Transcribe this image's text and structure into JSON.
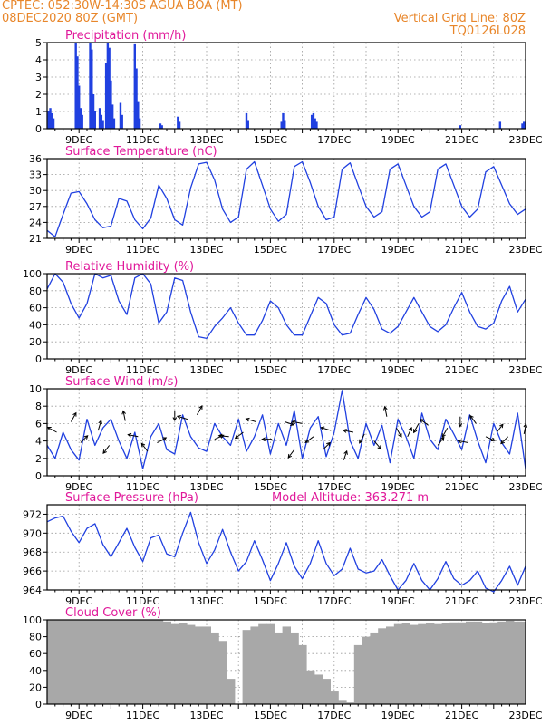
{
  "header": {
    "line1": "CPTEC:   052:30W-14:30S  AGUA BOA (MT)",
    "line2": "08DEC2020 80Z (GMT)",
    "grid_note": "Vertical Grid Line: 80Z",
    "model_code": "TQ0126L028"
  },
  "colors": {
    "header": "#e8862a",
    "title": "#e0189a",
    "series": "#2040e0",
    "cloud": "#a8a8a8",
    "axis": "#000000"
  },
  "x_ticks": [
    "9DEC",
    "11DEC",
    "13DEC",
    "15DEC",
    "17DEC",
    "19DEC",
    "21DEC",
    "23DEC"
  ],
  "chart_data": [
    {
      "type": "bar",
      "id": "precip",
      "title": "Precipitation (mm/h)",
      "ylim": [
        0,
        5
      ],
      "yticks": [
        0,
        1,
        2,
        3,
        4,
        5
      ],
      "bars": [
        [
          8.05,
          1.0
        ],
        [
          8.1,
          1.2
        ],
        [
          8.15,
          0.9
        ],
        [
          8.2,
          0.6
        ],
        [
          8.9,
          5.0
        ],
        [
          8.95,
          4.2
        ],
        [
          9.0,
          2.5
        ],
        [
          9.05,
          1.2
        ],
        [
          9.1,
          0.8
        ],
        [
          9.35,
          5.0
        ],
        [
          9.4,
          4.6
        ],
        [
          9.45,
          2.0
        ],
        [
          9.5,
          1.0
        ],
        [
          9.65,
          1.2
        ],
        [
          9.7,
          0.8
        ],
        [
          9.75,
          0.5
        ],
        [
          9.85,
          3.8
        ],
        [
          9.9,
          5.0
        ],
        [
          9.95,
          4.7
        ],
        [
          10.0,
          2.8
        ],
        [
          10.05,
          1.4
        ],
        [
          10.1,
          0.6
        ],
        [
          10.3,
          1.5
        ],
        [
          10.35,
          0.8
        ],
        [
          10.75,
          4.9
        ],
        [
          10.8,
          3.5
        ],
        [
          10.85,
          1.6
        ],
        [
          10.9,
          0.6
        ],
        [
          11.55,
          0.3
        ],
        [
          11.6,
          0.2
        ],
        [
          12.1,
          0.7
        ],
        [
          12.15,
          0.4
        ],
        [
          14.25,
          0.9
        ],
        [
          14.3,
          0.5
        ],
        [
          15.35,
          0.4
        ],
        [
          15.4,
          0.9
        ],
        [
          15.45,
          0.5
        ],
        [
          16.3,
          0.8
        ],
        [
          16.35,
          0.9
        ],
        [
          16.4,
          0.6
        ],
        [
          16.45,
          0.4
        ],
        [
          20.95,
          0.2
        ],
        [
          22.2,
          0.4
        ],
        [
          22.9,
          0.3
        ],
        [
          22.95,
          0.4
        ]
      ]
    },
    {
      "type": "line",
      "id": "temp",
      "title": "Surface Temperature (nC)",
      "ylim": [
        21,
        36
      ],
      "yticks": [
        21,
        24,
        27,
        30,
        33,
        36
      ],
      "x": [
        8.0,
        8.25,
        8.5,
        8.75,
        9.0,
        9.25,
        9.5,
        9.75,
        10.0,
        10.25,
        10.5,
        10.75,
        11.0,
        11.25,
        11.5,
        11.75,
        12.0,
        12.25,
        12.5,
        12.75,
        13.0,
        13.25,
        13.5,
        13.75,
        14.0,
        14.25,
        14.5,
        14.75,
        15.0,
        15.25,
        15.5,
        15.75,
        16.0,
        16.25,
        16.5,
        16.75,
        17.0,
        17.25,
        17.5,
        17.75,
        18.0,
        18.25,
        18.5,
        18.75,
        19.0,
        19.25,
        19.5,
        19.75,
        20.0,
        20.25,
        20.5,
        20.75,
        21.0,
        21.25,
        21.5,
        21.75,
        22.0,
        22.25,
        22.5,
        22.75,
        23.0
      ],
      "y": [
        22.5,
        21.3,
        25.5,
        29.5,
        29.8,
        27.5,
        24.5,
        23.0,
        23.3,
        28.5,
        28.0,
        24.5,
        22.8,
        24.8,
        31.0,
        28.5,
        24.5,
        23.5,
        30.5,
        35.0,
        35.3,
        32.0,
        26.5,
        24.0,
        25.0,
        34.0,
        35.4,
        31.0,
        26.5,
        24.2,
        25.5,
        34.5,
        35.4,
        31.5,
        27.0,
        24.5,
        25.0,
        34.0,
        35.2,
        31.0,
        27.0,
        25.0,
        26.0,
        34.0,
        35.0,
        31.0,
        27.0,
        25.0,
        26.0,
        34.0,
        35.0,
        31.0,
        27.0,
        25.0,
        26.5,
        33.5,
        34.5,
        31.0,
        27.5,
        25.5,
        26.5
      ]
    },
    {
      "type": "line",
      "id": "rh",
      "title": "Relative Humidity (%)",
      "ylim": [
        0,
        100
      ],
      "yticks": [
        0,
        20,
        40,
        60,
        80,
        100
      ],
      "x": [
        8.0,
        8.25,
        8.5,
        8.75,
        9.0,
        9.25,
        9.5,
        9.75,
        10.0,
        10.25,
        10.5,
        10.75,
        11.0,
        11.25,
        11.5,
        11.75,
        12.0,
        12.25,
        12.5,
        12.75,
        13.0,
        13.25,
        13.5,
        13.75,
        14.0,
        14.25,
        14.5,
        14.75,
        15.0,
        15.25,
        15.5,
        15.75,
        16.0,
        16.25,
        16.5,
        16.75,
        17.0,
        17.25,
        17.5,
        17.75,
        18.0,
        18.25,
        18.5,
        18.75,
        19.0,
        19.25,
        19.5,
        19.75,
        20.0,
        20.25,
        20.5,
        20.75,
        21.0,
        21.25,
        21.5,
        21.75,
        22.0,
        22.25,
        22.5,
        22.75,
        23.0
      ],
      "y": [
        82,
        100,
        90,
        65,
        48,
        65,
        100,
        95,
        98,
        68,
        52,
        95,
        100,
        88,
        42,
        55,
        95,
        92,
        55,
        26,
        24,
        38,
        48,
        60,
        42,
        28,
        28,
        45,
        68,
        60,
        40,
        28,
        28,
        50,
        72,
        65,
        40,
        28,
        30,
        52,
        72,
        58,
        35,
        30,
        38,
        55,
        72,
        55,
        38,
        32,
        40,
        60,
        78,
        55,
        38,
        35,
        42,
        68,
        85,
        55,
        70
      ]
    },
    {
      "type": "line",
      "id": "wind",
      "title": "Surface Wind (m/s)",
      "ylim": [
        0,
        10
      ],
      "yticks": [
        0,
        2,
        4,
        6,
        8,
        10
      ],
      "x": [
        8.0,
        8.25,
        8.5,
        8.75,
        9.0,
        9.25,
        9.5,
        9.75,
        10.0,
        10.25,
        10.5,
        10.75,
        11.0,
        11.25,
        11.5,
        11.75,
        12.0,
        12.25,
        12.5,
        12.75,
        13.0,
        13.25,
        13.5,
        13.75,
        14.0,
        14.25,
        14.5,
        14.75,
        15.0,
        15.25,
        15.5,
        15.75,
        16.0,
        16.25,
        16.5,
        16.75,
        17.0,
        17.25,
        17.5,
        17.75,
        18.0,
        18.25,
        18.5,
        18.75,
        19.0,
        19.25,
        19.5,
        19.75,
        20.0,
        20.25,
        20.5,
        20.75,
        21.0,
        21.25,
        21.5,
        21.75,
        22.0,
        22.25,
        22.5,
        22.75,
        23.0
      ],
      "y": [
        3.5,
        2.0,
        5.0,
        3.0,
        1.8,
        6.5,
        3.5,
        5.5,
        6.5,
        4.0,
        2.0,
        5.0,
        0.8,
        4.5,
        6.0,
        3.0,
        2.5,
        7.0,
        4.5,
        3.2,
        2.8,
        6.0,
        4.5,
        3.5,
        6.5,
        2.8,
        4.5,
        7.0,
        2.5,
        6.0,
        3.5,
        7.5,
        2.0,
        5.5,
        6.8,
        2.2,
        5.0,
        9.8,
        4.0,
        2.0,
        6.0,
        3.5,
        5.8,
        1.5,
        6.5,
        4.5,
        2.0,
        7.2,
        4.2,
        3.0,
        6.5,
        4.8,
        3.0,
        7.0,
        4.0,
        1.5,
        6.0,
        3.8,
        2.5,
        7.2,
        0.8
      ],
      "arrows": [
        [
          8.3,
          5.0,
          -0.9,
          0.5
        ],
        [
          8.75,
          6.2,
          0.5,
          0.9
        ],
        [
          9.05,
          3.8,
          0.7,
          0.7
        ],
        [
          9.6,
          5.2,
          0.3,
          1.0
        ],
        [
          9.95,
          3.5,
          -0.6,
          -0.8
        ],
        [
          10.45,
          6.3,
          -0.2,
          1.0
        ],
        [
          10.85,
          4.5,
          -1.0,
          0.2
        ],
        [
          11.15,
          2.8,
          -0.6,
          0.8
        ],
        [
          11.45,
          3.8,
          0.9,
          0.5
        ],
        [
          12.0,
          7.5,
          0.0,
          -1.0
        ],
        [
          12.4,
          6.5,
          -1.0,
          0.3
        ],
        [
          12.7,
          7.0,
          0.5,
          0.9
        ],
        [
          13.25,
          4.2,
          0.9,
          0.4
        ],
        [
          13.7,
          4.5,
          -1.0,
          0.1
        ],
        [
          14.15,
          5.0,
          -0.8,
          -0.6
        ],
        [
          14.55,
          6.2,
          -1.0,
          0.3
        ],
        [
          15.05,
          4.2,
          -1.0,
          0.0
        ],
        [
          15.45,
          6.2,
          0.9,
          -0.3
        ],
        [
          15.75,
          3.0,
          -0.6,
          -0.8
        ],
        [
          16.0,
          6.0,
          -1.0,
          0.2
        ],
        [
          16.35,
          4.5,
          -0.8,
          -0.6
        ],
        [
          16.65,
          3.0,
          0.7,
          0.7
        ],
        [
          16.9,
          5.2,
          -1.0,
          0.3
        ],
        [
          17.3,
          1.8,
          0.3,
          0.9
        ],
        [
          17.6,
          5.0,
          -1.0,
          0.2
        ],
        [
          17.95,
          4.8,
          -0.5,
          -0.9
        ],
        [
          18.25,
          4.0,
          0.7,
          -0.8
        ],
        [
          18.65,
          6.8,
          -0.2,
          1.0
        ],
        [
          18.95,
          5.5,
          0.5,
          -0.9
        ],
        [
          19.3,
          4.5,
          0.4,
          0.9
        ],
        [
          19.65,
          6.0,
          -0.5,
          -0.9
        ],
        [
          19.95,
          5.8,
          -0.8,
          0.6
        ],
        [
          20.25,
          3.5,
          0.6,
          0.8
        ],
        [
          20.55,
          5.5,
          -0.5,
          -0.9
        ],
        [
          20.95,
          6.8,
          0.0,
          -1.0
        ],
        [
          21.2,
          3.8,
          -1.0,
          0.2
        ],
        [
          21.45,
          6.0,
          -0.6,
          0.8
        ],
        [
          21.75,
          4.5,
          0.9,
          -0.4
        ],
        [
          22.1,
          5.0,
          0.6,
          0.8
        ],
        [
          22.45,
          4.5,
          -0.7,
          -0.7
        ],
        [
          22.95,
          4.8,
          0.2,
          1.0
        ]
      ]
    },
    {
      "type": "line",
      "id": "pres",
      "title": "Surface Pressure (hPa)",
      "annotation": "Model Altitude: 363.271 m",
      "ylim": [
        964,
        973
      ],
      "yticks": [
        964,
        966,
        968,
        970,
        972
      ],
      "x": [
        8.0,
        8.25,
        8.5,
        8.75,
        9.0,
        9.25,
        9.5,
        9.75,
        10.0,
        10.25,
        10.5,
        10.75,
        11.0,
        11.25,
        11.5,
        11.75,
        12.0,
        12.25,
        12.5,
        12.75,
        13.0,
        13.25,
        13.5,
        13.75,
        14.0,
        14.25,
        14.5,
        14.75,
        15.0,
        15.25,
        15.5,
        15.75,
        16.0,
        16.25,
        16.5,
        16.75,
        17.0,
        17.25,
        17.5,
        17.75,
        18.0,
        18.25,
        18.5,
        18.75,
        19.0,
        19.25,
        19.5,
        19.75,
        20.0,
        20.25,
        20.5,
        20.75,
        21.0,
        21.25,
        21.5,
        21.75,
        22.0,
        22.25,
        22.5,
        22.75,
        23.0
      ],
      "y": [
        971.2,
        971.6,
        971.8,
        970.2,
        969.0,
        970.5,
        971.0,
        968.8,
        967.5,
        969.0,
        970.5,
        968.5,
        967.0,
        969.5,
        969.8,
        967.8,
        967.5,
        970.0,
        972.2,
        969.0,
        966.8,
        968.2,
        970.4,
        968.0,
        966.0,
        967.0,
        969.2,
        967.2,
        965.0,
        966.8,
        969.0,
        966.5,
        965.2,
        966.8,
        969.2,
        966.8,
        965.5,
        966.2,
        968.4,
        966.2,
        965.8,
        966.0,
        967.2,
        965.5,
        964.0,
        965.0,
        966.8,
        965.0,
        964.0,
        965.2,
        967.0,
        965.2,
        964.5,
        965.0,
        966.0,
        964.2,
        963.8,
        965.0,
        966.5,
        964.5,
        966.5
      ]
    },
    {
      "type": "bar",
      "id": "cloud",
      "title": "Cloud Cover (%)",
      "ylim": [
        0,
        100
      ],
      "yticks": [
        0,
        20,
        40,
        60,
        80,
        100
      ],
      "x": [
        8.0,
        8.25,
        8.5,
        8.75,
        9.0,
        9.25,
        9.5,
        9.75,
        10.0,
        10.25,
        10.5,
        10.75,
        11.0,
        11.25,
        11.5,
        11.75,
        12.0,
        12.25,
        12.5,
        12.75,
        13.0,
        13.25,
        13.5,
        13.75,
        14.0,
        14.25,
        14.5,
        14.75,
        15.0,
        15.25,
        15.5,
        15.75,
        16.0,
        16.25,
        16.5,
        16.75,
        17.0,
        17.25,
        17.5,
        17.75,
        18.0,
        18.25,
        18.5,
        18.75,
        19.0,
        19.25,
        19.5,
        19.75,
        20.0,
        20.25,
        20.5,
        20.75,
        21.0,
        21.25,
        21.5,
        21.75,
        22.0,
        22.25,
        22.5,
        22.75,
        23.0
      ],
      "y": [
        100,
        100,
        100,
        100,
        100,
        100,
        100,
        100,
        100,
        100,
        100,
        100,
        100,
        100,
        100,
        98,
        95,
        96,
        94,
        92,
        92,
        85,
        75,
        30,
        0,
        88,
        92,
        95,
        95,
        85,
        92,
        85,
        70,
        40,
        35,
        30,
        15,
        5,
        2,
        70,
        80,
        85,
        90,
        92,
        95,
        96,
        94,
        95,
        96,
        95,
        96,
        97,
        97,
        98,
        98,
        96,
        97,
        98,
        99,
        98,
        98
      ]
    }
  ]
}
